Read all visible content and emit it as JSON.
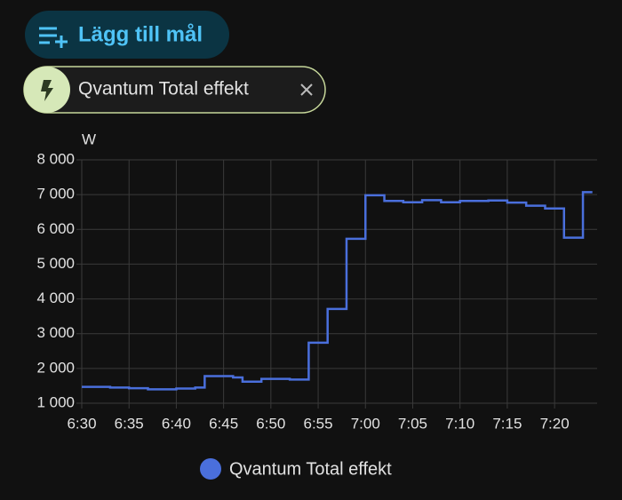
{
  "header": {
    "add_target": "Lägg till mål"
  },
  "chip": {
    "label": "Qvantum Total effekt"
  },
  "chart_data": {
    "type": "line",
    "step": true,
    "ylabel": "W",
    "x": [
      "6:30",
      "6:33",
      "6:35",
      "6:37",
      "6:40",
      "6:42",
      "6:43",
      "6:46",
      "6:47",
      "6:49",
      "6:52",
      "6:54",
      "6:56",
      "6:58",
      "7:00",
      "7:02",
      "7:04",
      "7:06",
      "7:08",
      "7:10",
      "7:13",
      "7:15",
      "7:17",
      "7:19",
      "7:21",
      "7:23",
      "7:24"
    ],
    "series": [
      {
        "name": "Qvantum Total effekt",
        "color": "#4a6fdc",
        "values": [
          1470,
          1450,
          1430,
          1400,
          1420,
          1450,
          1780,
          1740,
          1620,
          1700,
          1680,
          2740,
          3710,
          5730,
          6980,
          6820,
          6780,
          6840,
          6780,
          6820,
          6830,
          6770,
          6680,
          6600,
          5760,
          7070,
          7070
        ]
      }
    ],
    "xlim": [
      "6:30",
      "7:24"
    ],
    "xticks": [
      "6:30",
      "6:35",
      "6:40",
      "6:45",
      "6:50",
      "6:55",
      "7:00",
      "7:05",
      "7:10",
      "7:15",
      "7:20"
    ],
    "ylim": [
      1000,
      8000
    ],
    "yticks": [
      {
        "value": 1000,
        "label": "1 000"
      },
      {
        "value": 2000,
        "label": "2 000"
      },
      {
        "value": 3000,
        "label": "3 000"
      },
      {
        "value": 4000,
        "label": "4 000"
      },
      {
        "value": 5000,
        "label": "5 000"
      },
      {
        "value": 6000,
        "label": "6 000"
      },
      {
        "value": 7000,
        "label": "7 000"
      },
      {
        "value": 8000,
        "label": "8 000"
      }
    ],
    "grid": true,
    "legend": "bottom"
  }
}
